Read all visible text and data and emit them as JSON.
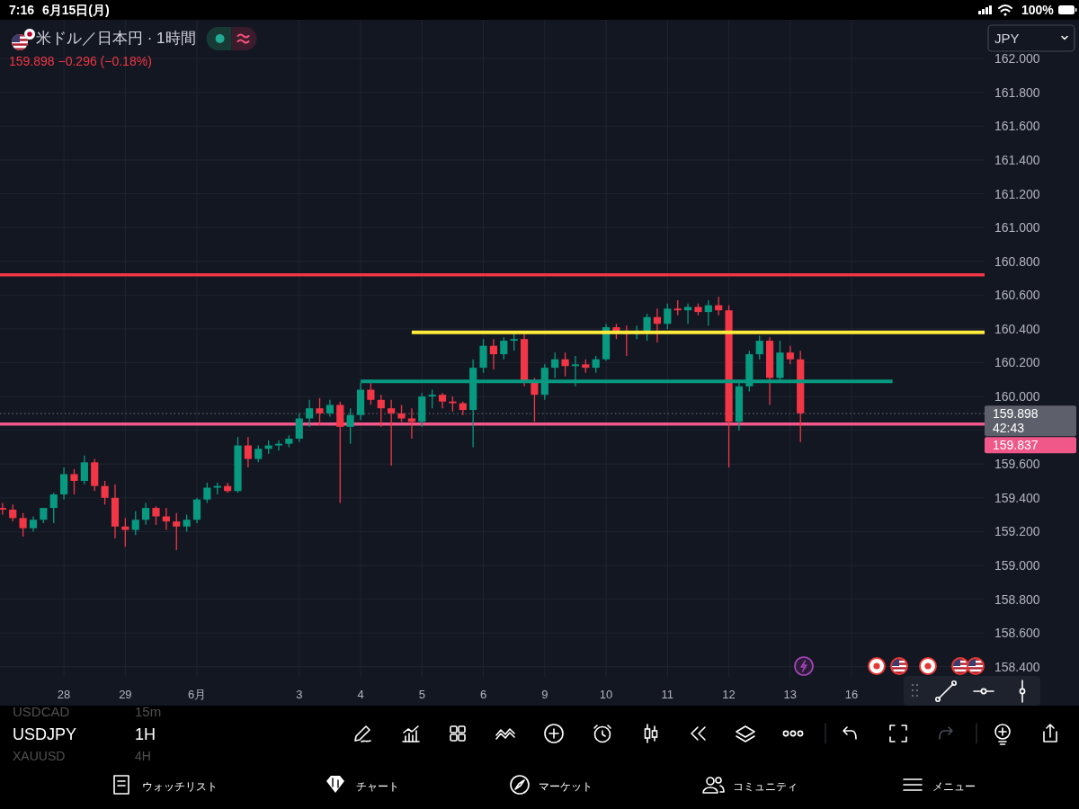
{
  "chart_data": {
    "type": "candlestick",
    "title": "米ドル／日本円 · 1時間",
    "subtitle": "159.898 −0.296 (−0.18%)",
    "categories": [
      null,
      null,
      null,
      null,
      null,
      null,
      "28",
      null,
      null,
      null,
      null,
      null,
      "29",
      null,
      null,
      null,
      null,
      null,
      null,
      "6月",
      null,
      null,
      null,
      null,
      null,
      null,
      null,
      null,
      null,
      "3",
      null,
      null,
      null,
      null,
      null,
      "4",
      null,
      null,
      null,
      null,
      null,
      "5",
      null,
      null,
      null,
      null,
      null,
      "6",
      null,
      null,
      null,
      null,
      null,
      "9",
      null,
      null,
      null,
      null,
      null,
      "10",
      null,
      null,
      null,
      null,
      null,
      "11",
      null,
      null,
      null,
      null,
      null,
      "12",
      null,
      null,
      null,
      null,
      null,
      "13",
      null,
      null,
      null,
      null,
      null,
      "16",
      null,
      null,
      null,
      null,
      null,
      null,
      null,
      null,
      null,
      null,
      null,
      null,
      null
    ],
    "ohlc": [
      [
        159.34,
        159.37,
        159.3,
        159.33
      ],
      [
        159.33,
        159.36,
        159.26,
        159.28
      ],
      [
        159.28,
        159.31,
        159.17,
        159.22
      ],
      [
        159.22,
        159.29,
        159.2,
        159.27
      ],
      [
        159.27,
        159.34,
        159.25,
        159.34
      ],
      [
        159.34,
        159.43,
        159.25,
        159.42
      ],
      [
        159.42,
        159.58,
        159.39,
        159.54
      ],
      [
        159.54,
        159.57,
        159.42,
        159.5
      ],
      [
        159.5,
        159.65,
        159.48,
        159.61
      ],
      [
        159.61,
        159.63,
        159.44,
        159.47
      ],
      [
        159.47,
        159.5,
        159.36,
        159.4
      ],
      [
        159.4,
        159.48,
        159.16,
        159.23
      ],
      [
        159.23,
        159.28,
        159.11,
        159.21
      ],
      [
        159.21,
        159.32,
        159.18,
        159.27
      ],
      [
        159.27,
        159.37,
        159.24,
        159.34
      ],
      [
        159.34,
        159.35,
        159.24,
        159.29
      ],
      [
        159.29,
        159.34,
        159.21,
        159.26
      ],
      [
        159.26,
        159.31,
        159.09,
        159.23
      ],
      [
        159.23,
        159.3,
        159.2,
        159.27
      ],
      [
        159.27,
        159.4,
        159.25,
        159.39
      ],
      [
        159.39,
        159.49,
        159.37,
        159.46
      ],
      [
        159.46,
        159.49,
        159.42,
        159.47
      ],
      [
        159.47,
        159.49,
        159.43,
        159.44
      ],
      [
        159.44,
        159.76,
        159.43,
        159.71
      ],
      [
        159.71,
        159.76,
        159.58,
        159.63
      ],
      [
        159.63,
        159.71,
        159.61,
        159.69
      ],
      [
        159.69,
        159.74,
        159.66,
        159.71
      ],
      [
        159.71,
        159.74,
        159.68,
        159.72
      ],
      [
        159.72,
        159.77,
        159.7,
        159.75
      ],
      [
        159.75,
        159.9,
        159.73,
        159.87
      ],
      [
        159.87,
        159.98,
        159.82,
        159.93
      ],
      [
        159.93,
        159.99,
        159.83,
        159.9
      ],
      [
        159.9,
        159.98,
        159.88,
        159.95
      ],
      [
        159.95,
        159.97,
        159.37,
        159.82
      ],
      [
        159.82,
        159.93,
        159.72,
        159.89
      ],
      [
        159.89,
        160.08,
        159.86,
        160.04
      ],
      [
        160.04,
        160.08,
        159.95,
        159.98
      ],
      [
        159.98,
        160.01,
        159.82,
        159.93
      ],
      [
        159.93,
        159.98,
        159.59,
        159.9
      ],
      [
        159.9,
        159.95,
        159.85,
        159.87
      ],
      [
        159.87,
        159.93,
        159.75,
        159.85
      ],
      [
        159.85,
        160.02,
        159.82,
        160.0
      ],
      [
        160.0,
        160.04,
        159.93,
        160.01
      ],
      [
        160.01,
        160.02,
        159.93,
        159.97
      ],
      [
        159.97,
        160.0,
        159.91,
        159.96
      ],
      [
        159.96,
        159.97,
        159.89,
        159.92
      ],
      [
        159.92,
        160.22,
        159.7,
        160.17
      ],
      [
        160.17,
        160.34,
        160.14,
        160.3
      ],
      [
        160.3,
        160.34,
        160.16,
        160.25
      ],
      [
        160.25,
        160.35,
        160.22,
        160.33
      ],
      [
        160.33,
        160.38,
        160.27,
        160.34
      ],
      [
        160.34,
        160.37,
        160.06,
        160.09
      ],
      [
        160.09,
        160.11,
        159.85,
        160.01
      ],
      [
        160.01,
        160.19,
        159.98,
        160.17
      ],
      [
        160.17,
        160.26,
        160.11,
        160.22
      ],
      [
        160.22,
        160.26,
        160.12,
        160.18
      ],
      [
        160.18,
        160.24,
        160.06,
        160.19
      ],
      [
        160.19,
        160.22,
        160.14,
        160.17
      ],
      [
        160.17,
        160.24,
        160.14,
        160.22
      ],
      [
        160.22,
        160.43,
        160.21,
        160.41
      ],
      [
        160.41,
        160.43,
        160.34,
        160.38
      ],
      [
        160.38,
        160.42,
        160.24,
        160.37
      ],
      [
        160.37,
        160.42,
        160.34,
        160.38
      ],
      [
        160.38,
        160.49,
        160.33,
        160.47
      ],
      [
        160.47,
        160.52,
        160.32,
        160.43
      ],
      [
        160.43,
        160.55,
        160.4,
        160.52
      ],
      [
        160.52,
        160.57,
        160.48,
        160.51
      ],
      [
        160.51,
        160.55,
        160.43,
        160.53
      ],
      [
        160.53,
        160.55,
        160.48,
        160.5
      ],
      [
        160.5,
        160.57,
        160.42,
        160.54
      ],
      [
        160.54,
        160.59,
        160.48,
        160.51
      ],
      [
        160.51,
        160.54,
        159.58,
        159.85
      ],
      [
        159.85,
        160.09,
        159.8,
        160.06
      ],
      [
        160.06,
        160.27,
        160.03,
        160.25
      ],
      [
        160.25,
        160.36,
        160.22,
        160.33
      ],
      [
        160.33,
        160.35,
        159.95,
        160.11
      ],
      [
        160.11,
        160.33,
        160.09,
        160.26
      ],
      [
        160.26,
        160.3,
        160.19,
        160.22
      ],
      [
        160.22,
        160.27,
        159.73,
        159.9
      ],
      null,
      null,
      null,
      null,
      null,
      null,
      null,
      null,
      null,
      null,
      null,
      null,
      null,
      null,
      null,
      null,
      null,
      null
    ],
    "colors": [
      "#f23645",
      "#f23645",
      "#f23645",
      "#089981",
      "#089981",
      "#089981",
      "#089981",
      "#f23645",
      "#089981",
      "#f23645",
      "#f23645",
      "#f23645",
      "#f23645",
      "#089981",
      "#089981",
      "#f23645",
      "#f23645",
      "#f23645",
      "#089981",
      "#089981",
      "#089981",
      "#089981",
      "#f23645",
      "#089981",
      "#f23645",
      "#089981",
      "#089981",
      "#089981",
      "#089981",
      "#089981",
      "#089981",
      "#f23645",
      "#089981",
      "#f23645",
      "#089981",
      "#089981",
      "#f23645",
      "#f23645",
      "#f23645",
      "#f23645",
      "#f23645",
      "#089981",
      "#089981",
      "#f23645",
      "#f23645",
      "#f23645",
      "#089981",
      "#089981",
      "#f23645",
      "#089981",
      "#089981",
      "#f23645",
      "#f23645",
      "#089981",
      "#089981",
      "#f23645",
      "#089981",
      "#f23645",
      "#089981",
      "#089981",
      "#f23645",
      "#f23645",
      "#089981",
      "#089981",
      "#f23645",
      "#089981",
      "#f23645",
      "#089981",
      "#f23645",
      "#089981",
      "#f23645",
      "#f23645",
      "#089981",
      "#089981",
      "#089981",
      "#f23645",
      "#089981",
      "#f23645",
      "#f23645",
      null,
      null,
      null,
      null,
      null,
      null,
      null,
      null,
      null,
      null,
      null,
      null,
      null,
      null,
      null,
      null,
      null,
      null
    ],
    "series": [
      {
        "type": "line",
        "color": "#ffeb3b",
        "values": [
          null,
          null,
          null,
          null,
          null,
          null,
          null,
          null,
          null,
          null,
          null,
          null,
          null,
          null,
          null,
          null,
          null,
          null,
          null,
          null,
          null,
          null,
          null,
          null,
          null,
          null,
          null,
          null,
          null,
          null,
          null,
          null,
          null,
          null,
          null,
          null,
          null,
          null,
          null,
          null,
          160.38,
          160.38,
          160.38,
          160.38,
          160.38,
          160.38,
          160.38,
          160.38,
          160.38,
          160.38,
          160.38,
          160.38,
          160.38,
          160.38,
          160.38,
          160.38,
          160.38,
          160.38,
          160.38,
          160.38,
          160.38,
          160.38,
          160.38,
          160.38,
          160.38,
          160.38,
          160.38,
          160.38,
          160.38,
          160.38,
          160.38,
          160.38,
          160.38,
          160.38,
          160.38,
          160.38,
          160.38,
          160.38,
          160.38,
          160.38,
          160.38,
          160.38,
          160.38,
          160.38,
          160.38,
          160.38,
          160.38,
          160.38,
          160.38,
          160.38,
          160.38,
          160.38,
          160.38,
          160.38,
          160.38,
          160.38,
          160.38
        ]
      },
      {
        "type": "line",
        "color": "#089981",
        "values": [
          null,
          null,
          null,
          null,
          null,
          null,
          null,
          null,
          null,
          null,
          null,
          null,
          null,
          null,
          null,
          null,
          null,
          null,
          null,
          null,
          null,
          null,
          null,
          null,
          null,
          null,
          null,
          null,
          null,
          null,
          null,
          null,
          null,
          null,
          null,
          160.09,
          160.09,
          160.09,
          160.09,
          160.09,
          160.09,
          160.09,
          160.09,
          160.09,
          160.09,
          160.09,
          160.09,
          160.09,
          160.09,
          160.09,
          160.09,
          160.09,
          160.09,
          160.09,
          160.09,
          160.09,
          160.09,
          160.09,
          160.09,
          160.09,
          160.09,
          160.09,
          160.09,
          160.09,
          160.09,
          160.09,
          160.09,
          160.09,
          160.09,
          160.09,
          160.09,
          160.09,
          160.09,
          160.09,
          160.09,
          160.09,
          160.09,
          160.09,
          160.09,
          160.09,
          160.09,
          160.09,
          160.09,
          160.09,
          160.09,
          160.09,
          160.09,
          160.09,
          null,
          null,
          null,
          null,
          null,
          null,
          null,
          null,
          null
        ]
      }
    ],
    "ref_lines": [
      {
        "axis": "y",
        "value": 160.72,
        "color": "#f23645"
      },
      {
        "axis": "y",
        "value": 159.837,
        "label": "159.837",
        "color": "#f0588a"
      },
      {
        "axis": "y",
        "value": 159.898,
        "label": "159.898",
        "color": "#5d606b",
        "line_style": "dotted"
      }
    ],
    "ylim": [
      158.34,
      162.23
    ],
    "yticks": [
      {
        "value": 158.4,
        "label": "158.400"
      },
      {
        "value": 158.6,
        "label": "158.600"
      },
      {
        "value": 158.8,
        "label": "158.800"
      },
      {
        "value": 159.0,
        "label": "159.000"
      },
      {
        "value": 159.2,
        "label": "159.200"
      },
      {
        "value": 159.4,
        "label": "159.400"
      },
      {
        "value": 159.6,
        "label": "159.600"
      },
      {
        "value": 159.8,
        "label": null
      },
      {
        "value": 160.0,
        "label": "160.000"
      },
      {
        "value": 160.2,
        "label": "160.200"
      },
      {
        "value": 160.4,
        "label": "160.400"
      },
      {
        "value": 160.6,
        "label": "160.600"
      },
      {
        "value": 160.8,
        "label": "160.800"
      },
      {
        "value": 161.0,
        "label": "161.000"
      },
      {
        "value": 161.2,
        "label": "161.200"
      },
      {
        "value": 161.4,
        "label": "161.400"
      },
      {
        "value": 161.6,
        "label": "161.600"
      },
      {
        "value": 161.8,
        "label": "161.800"
      },
      {
        "value": 162.0,
        "label": "162.000"
      }
    ],
    "grid": true,
    "annotations": [
      "7:16",
      "6月15日(月)",
      "100%",
      "42:43",
      "JPY",
      "USDCAD",
      "15m",
      "USDJPY",
      "1H",
      "XAUUSD",
      "4H",
      "ウォッチリスト",
      "チャート",
      "マーケット",
      "コミュニティ",
      "メニュー"
    ]
  }
}
